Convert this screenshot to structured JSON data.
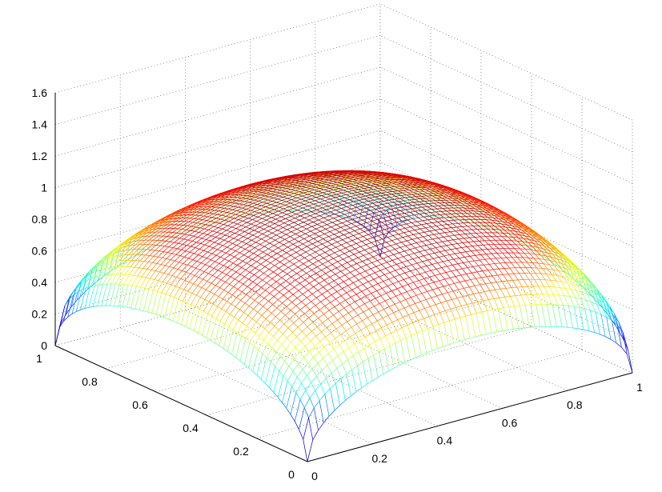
{
  "chart_data": {
    "type": "surface",
    "style": "mesh",
    "colormap": "jet",
    "function": "z = sqrt(x*(1-x)) + sqrt(y*(1-y))",
    "x": {
      "min": 0,
      "max": 1,
      "ticks": [
        "0",
        "0.2",
        "0.4",
        "0.6",
        "0.8",
        "1"
      ]
    },
    "y": {
      "min": 0,
      "max": 1,
      "ticks": [
        "0",
        "0.2",
        "0.4",
        "0.6",
        "0.8",
        "1"
      ]
    },
    "z": {
      "min": 0,
      "max": 1.6,
      "ticks": [
        "0",
        "0.2",
        "0.4",
        "0.6",
        "0.8",
        "1",
        "1.2",
        "1.4",
        "1.6"
      ]
    },
    "z_peak": 1.0,
    "grid": true,
    "grid_style": "dotted",
    "title": "",
    "xlabel": "",
    "ylabel": "",
    "zlabel": "",
    "colormap_stops": [
      "#00008f",
      "#0000ff",
      "#00ffff",
      "#ffff00",
      "#ff0000",
      "#800000"
    ],
    "axis_color": "#000000",
    "grid_color": "#777777"
  }
}
